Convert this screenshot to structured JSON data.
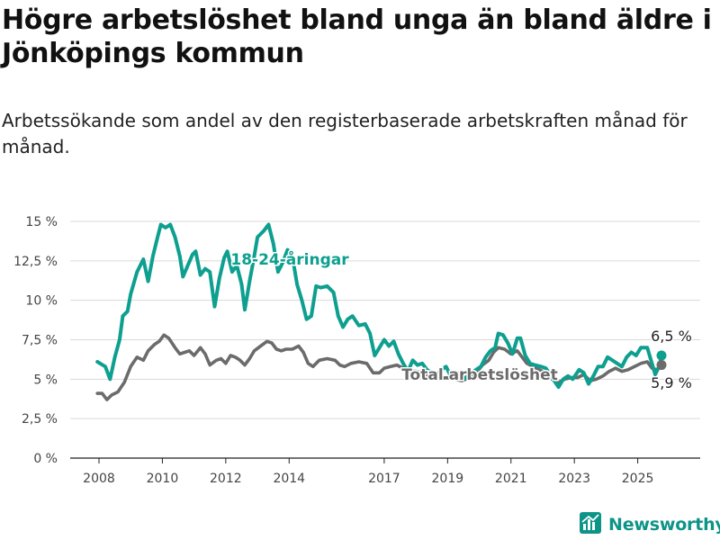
{
  "title": "Högre arbetslöshet bland unga än bland äldre i Jönköpings kommun",
  "subtitle": "Arbetssökande som andel av den registerbaserade arbetskraften månad för månad.",
  "brand": {
    "name": "Newsworthy",
    "color": "#0d9488"
  },
  "chart_data": {
    "type": "line",
    "title": "Högre arbetslöshet bland unga än bland äldre i Jönköpings kommun",
    "subtitle": "Arbetssökande som andel av den registerbaserade arbetskraften månad för månad.",
    "ylim": [
      0,
      15
    ],
    "yticks": [
      0,
      2.5,
      5,
      7.5,
      10,
      12.5,
      15
    ],
    "ytick_labels": [
      "0 %",
      "2,5 %",
      "5 %",
      "7,5 %",
      "10 %",
      "12,5 %",
      "15 %"
    ],
    "xlim": [
      2008,
      2026.5
    ],
    "xticks": [
      2008,
      2010,
      2012,
      2014,
      2017,
      2019,
      2021,
      2023,
      2025
    ],
    "xtick_labels": [
      "2008",
      "2010",
      "2012",
      "2014",
      "2017",
      "2019",
      "2021",
      "2023",
      "2025"
    ],
    "grid": true,
    "series": [
      {
        "name": "18-24-åringar",
        "color": "#0d9f8f",
        "end_label": "6,5 %",
        "points": [
          [
            2007.95,
            6.1
          ],
          [
            2008.2,
            5.8
          ],
          [
            2008.35,
            5.0
          ],
          [
            2008.5,
            6.4
          ],
          [
            2008.65,
            7.5
          ],
          [
            2008.75,
            9.0
          ],
          [
            2008.9,
            9.3
          ],
          [
            2009.0,
            10.4
          ],
          [
            2009.2,
            11.8
          ],
          [
            2009.4,
            12.6
          ],
          [
            2009.55,
            11.2
          ],
          [
            2009.7,
            12.8
          ],
          [
            2009.85,
            14.0
          ],
          [
            2009.95,
            14.8
          ],
          [
            2010.1,
            14.6
          ],
          [
            2010.25,
            14.8
          ],
          [
            2010.4,
            14.0
          ],
          [
            2010.55,
            12.8
          ],
          [
            2010.65,
            11.5
          ],
          [
            2010.8,
            12.2
          ],
          [
            2010.95,
            12.9
          ],
          [
            2011.05,
            13.1
          ],
          [
            2011.2,
            11.6
          ],
          [
            2011.35,
            12.0
          ],
          [
            2011.5,
            11.8
          ],
          [
            2011.65,
            9.6
          ],
          [
            2011.8,
            11.4
          ],
          [
            2011.95,
            12.7
          ],
          [
            2012.05,
            13.1
          ],
          [
            2012.2,
            11.8
          ],
          [
            2012.35,
            12.2
          ],
          [
            2012.5,
            11.0
          ],
          [
            2012.6,
            9.4
          ],
          [
            2012.75,
            11.2
          ],
          [
            2012.9,
            12.8
          ],
          [
            2013.0,
            14.0
          ],
          [
            2013.2,
            14.4
          ],
          [
            2013.35,
            14.8
          ],
          [
            2013.5,
            13.6
          ],
          [
            2013.65,
            11.8
          ],
          [
            2013.8,
            12.4
          ],
          [
            2013.95,
            13.2
          ],
          [
            2014.1,
            12.8
          ],
          [
            2014.25,
            11.0
          ],
          [
            2014.4,
            10.0
          ],
          [
            2014.55,
            8.8
          ],
          [
            2014.7,
            9.0
          ],
          [
            2014.85,
            10.9
          ],
          [
            2015.0,
            10.8
          ],
          [
            2015.2,
            10.9
          ],
          [
            2015.4,
            10.5
          ],
          [
            2015.55,
            9.0
          ],
          [
            2015.7,
            8.3
          ],
          [
            2015.85,
            8.8
          ],
          [
            2016.0,
            9.0
          ],
          [
            2016.2,
            8.4
          ],
          [
            2016.4,
            8.5
          ],
          [
            2016.55,
            7.9
          ],
          [
            2016.7,
            6.5
          ],
          [
            2016.85,
            7.0
          ],
          [
            2017.0,
            7.5
          ],
          [
            2017.15,
            7.1
          ],
          [
            2017.3,
            7.4
          ],
          [
            2017.45,
            6.6
          ],
          [
            2017.6,
            6.0
          ],
          [
            2017.75,
            5.5
          ],
          [
            2017.9,
            6.2
          ],
          [
            2018.05,
            5.9
          ],
          [
            2018.2,
            6.0
          ],
          [
            2018.35,
            5.6
          ],
          [
            2018.5,
            5.4
          ],
          [
            2018.65,
            5.2
          ],
          [
            2018.8,
            5.6
          ],
          [
            2018.95,
            5.8
          ],
          [
            2019.1,
            5.2
          ],
          [
            2019.3,
            5.4
          ],
          [
            2019.5,
            5.0
          ],
          [
            2019.7,
            5.3
          ],
          [
            2019.9,
            5.6
          ],
          [
            2020.05,
            5.8
          ],
          [
            2020.2,
            6.4
          ],
          [
            2020.35,
            6.8
          ],
          [
            2020.5,
            7.0
          ],
          [
            2020.6,
            7.9
          ],
          [
            2020.75,
            7.8
          ],
          [
            2020.9,
            7.3
          ],
          [
            2021.05,
            6.6
          ],
          [
            2021.2,
            7.6
          ],
          [
            2021.3,
            7.6
          ],
          [
            2021.45,
            6.5
          ],
          [
            2021.6,
            6.0
          ],
          [
            2021.75,
            5.9
          ],
          [
            2021.95,
            5.8
          ],
          [
            2022.1,
            5.7
          ],
          [
            2022.3,
            5.1
          ],
          [
            2022.5,
            4.5
          ],
          [
            2022.65,
            5.0
          ],
          [
            2022.8,
            5.2
          ],
          [
            2022.95,
            5.0
          ],
          [
            2023.15,
            5.6
          ],
          [
            2023.3,
            5.4
          ],
          [
            2023.45,
            4.7
          ],
          [
            2023.6,
            5.2
          ],
          [
            2023.75,
            5.8
          ],
          [
            2023.9,
            5.8
          ],
          [
            2024.05,
            6.4
          ],
          [
            2024.2,
            6.2
          ],
          [
            2024.35,
            6.0
          ],
          [
            2024.5,
            5.8
          ],
          [
            2024.65,
            6.4
          ],
          [
            2024.8,
            6.7
          ],
          [
            2024.95,
            6.5
          ],
          [
            2025.1,
            7.0
          ],
          [
            2025.3,
            7.0
          ],
          [
            2025.45,
            6.0
          ],
          [
            2025.55,
            5.3
          ],
          [
            2025.7,
            5.9
          ],
          [
            2025.75,
            6.5
          ]
        ]
      },
      {
        "name": "Total arbetslöshet",
        "color": "#6b6b6b",
        "end_label": "5,9 %",
        "points": [
          [
            2007.95,
            4.1
          ],
          [
            2008.1,
            4.1
          ],
          [
            2008.25,
            3.7
          ],
          [
            2008.4,
            4.0
          ],
          [
            2008.6,
            4.2
          ],
          [
            2008.8,
            4.8
          ],
          [
            2009.0,
            5.8
          ],
          [
            2009.2,
            6.4
          ],
          [
            2009.4,
            6.2
          ],
          [
            2009.55,
            6.8
          ],
          [
            2009.75,
            7.2
          ],
          [
            2009.9,
            7.4
          ],
          [
            2010.05,
            7.8
          ],
          [
            2010.2,
            7.6
          ],
          [
            2010.4,
            7.0
          ],
          [
            2010.55,
            6.6
          ],
          [
            2010.7,
            6.7
          ],
          [
            2010.85,
            6.8
          ],
          [
            2011.0,
            6.5
          ],
          [
            2011.2,
            7.0
          ],
          [
            2011.35,
            6.6
          ],
          [
            2011.5,
            5.9
          ],
          [
            2011.7,
            6.2
          ],
          [
            2011.85,
            6.3
          ],
          [
            2012.0,
            6.0
          ],
          [
            2012.15,
            6.5
          ],
          [
            2012.3,
            6.4
          ],
          [
            2012.45,
            6.2
          ],
          [
            2012.6,
            5.9
          ],
          [
            2012.75,
            6.3
          ],
          [
            2012.9,
            6.8
          ],
          [
            2013.1,
            7.1
          ],
          [
            2013.3,
            7.4
          ],
          [
            2013.45,
            7.3
          ],
          [
            2013.6,
            6.9
          ],
          [
            2013.75,
            6.8
          ],
          [
            2013.9,
            6.9
          ],
          [
            2014.1,
            6.9
          ],
          [
            2014.3,
            7.1
          ],
          [
            2014.45,
            6.7
          ],
          [
            2014.6,
            6.0
          ],
          [
            2014.75,
            5.8
          ],
          [
            2014.95,
            6.2
          ],
          [
            2015.2,
            6.3
          ],
          [
            2015.45,
            6.2
          ],
          [
            2015.6,
            5.9
          ],
          [
            2015.75,
            5.8
          ],
          [
            2015.95,
            6.0
          ],
          [
            2016.2,
            6.1
          ],
          [
            2016.45,
            6.0
          ],
          [
            2016.65,
            5.4
          ],
          [
            2016.85,
            5.4
          ],
          [
            2017.0,
            5.7
          ],
          [
            2017.2,
            5.8
          ],
          [
            2017.4,
            5.9
          ],
          [
            2017.6,
            5.7
          ],
          [
            2017.8,
            5.5
          ],
          [
            2018.0,
            5.5
          ],
          [
            2018.2,
            5.4
          ],
          [
            2018.45,
            5.2
          ],
          [
            2018.7,
            5.0
          ],
          [
            2018.95,
            5.1
          ],
          [
            2019.2,
            5.0
          ],
          [
            2019.45,
            4.9
          ],
          [
            2019.7,
            5.1
          ],
          [
            2019.9,
            5.4
          ],
          [
            2020.1,
            5.9
          ],
          [
            2020.3,
            6.2
          ],
          [
            2020.45,
            6.7
          ],
          [
            2020.6,
            7.0
          ],
          [
            2020.8,
            6.9
          ],
          [
            2021.0,
            6.6
          ],
          [
            2021.2,
            6.8
          ],
          [
            2021.35,
            6.4
          ],
          [
            2021.5,
            6.0
          ],
          [
            2021.7,
            5.8
          ],
          [
            2021.9,
            5.6
          ],
          [
            2022.1,
            5.4
          ],
          [
            2022.3,
            5.0
          ],
          [
            2022.5,
            4.8
          ],
          [
            2022.7,
            5.0
          ],
          [
            2022.9,
            5.1
          ],
          [
            2023.1,
            5.1
          ],
          [
            2023.3,
            5.3
          ],
          [
            2023.5,
            4.9
          ],
          [
            2023.7,
            5.0
          ],
          [
            2023.9,
            5.2
          ],
          [
            2024.1,
            5.5
          ],
          [
            2024.3,
            5.7
          ],
          [
            2024.5,
            5.5
          ],
          [
            2024.7,
            5.6
          ],
          [
            2024.9,
            5.8
          ],
          [
            2025.1,
            6.0
          ],
          [
            2025.3,
            6.1
          ],
          [
            2025.45,
            5.7
          ],
          [
            2025.6,
            5.6
          ],
          [
            2025.75,
            5.9
          ]
        ]
      }
    ]
  }
}
